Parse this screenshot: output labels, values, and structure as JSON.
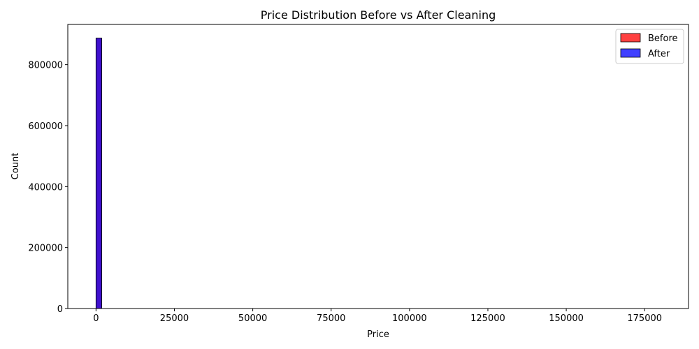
{
  "chart_data": {
    "type": "bar",
    "title": "Price Distribution Before vs After Cleaning",
    "xlabel": "Price",
    "ylabel": "Count",
    "xlim": [
      -9000,
      189000
    ],
    "ylim": [
      0,
      932000
    ],
    "x_ticks": [
      0,
      25000,
      50000,
      75000,
      100000,
      125000,
      150000,
      175000
    ],
    "x_tick_labels": [
      "0",
      "25000",
      "50000",
      "75000",
      "100000",
      "125000",
      "150000",
      "175000"
    ],
    "y_ticks": [
      0,
      200000,
      400000,
      600000,
      800000
    ],
    "y_tick_labels": [
      "0",
      "200000",
      "400000",
      "600000",
      "800000"
    ],
    "grid": false,
    "legend_position": "top-right",
    "series": [
      {
        "name": "Before",
        "color": "#ff0000",
        "opacity": 0.75,
        "bins": [
          {
            "x0": 0,
            "x1": 1800,
            "count": 887000
          }
        ]
      },
      {
        "name": "After",
        "color": "#0000ff",
        "opacity": 0.75,
        "bins": [
          {
            "x0": 0,
            "x1": 1800,
            "count": 887000
          }
        ]
      }
    ]
  }
}
